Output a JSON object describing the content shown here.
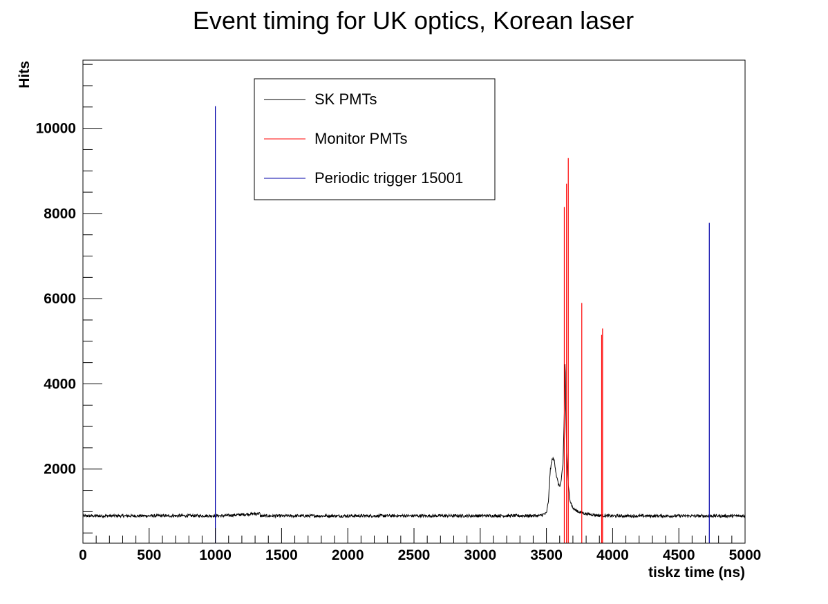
{
  "chart_data": {
    "type": "line",
    "title": "Event timing for UK optics, Korean laser",
    "xlabel": "tiskz time (ns)",
    "ylabel": "Hits",
    "xlim": [
      0,
      5000
    ],
    "ylim": [
      260,
      11600
    ],
    "x_ticks": [
      0,
      500,
      1000,
      1500,
      2000,
      2500,
      3000,
      3500,
      4000,
      4500,
      5000
    ],
    "y_ticks": [
      2000,
      4000,
      6000,
      8000,
      10000
    ],
    "legend_position": "top-center",
    "series": [
      {
        "name": "SK PMTs",
        "color": "#000000",
        "baseline": 900,
        "points": [
          [
            0,
            900
          ],
          [
            1000,
            905
          ],
          [
            1050,
            900
          ],
          [
            1335,
            960
          ],
          [
            1340,
            900
          ],
          [
            3450,
            905
          ],
          [
            3500,
            960
          ],
          [
            3515,
            1250
          ],
          [
            3530,
            2000
          ],
          [
            3545,
            2250
          ],
          [
            3560,
            2200
          ],
          [
            3575,
            1850
          ],
          [
            3590,
            1650
          ],
          [
            3600,
            1600
          ],
          [
            3610,
            1700
          ],
          [
            3625,
            2100
          ],
          [
            3637,
            3550
          ],
          [
            3641,
            4750
          ],
          [
            3645,
            3500
          ],
          [
            3652,
            2500
          ],
          [
            3665,
            1600
          ],
          [
            3680,
            1250
          ],
          [
            3700,
            1080
          ],
          [
            3740,
            1000
          ],
          [
            3800,
            950
          ],
          [
            3900,
            910
          ],
          [
            4000,
            900
          ],
          [
            5000,
            900
          ]
        ]
      },
      {
        "name": "Monitor PMTs",
        "color": "#ff0000",
        "spikes": [
          {
            "x": 3635,
            "height": 8150
          },
          {
            "x": 3652,
            "height": 8700
          },
          {
            "x": 3665,
            "height": 9300
          },
          {
            "x": 3767,
            "height": 5900
          },
          {
            "x": 3917,
            "height": 5150
          },
          {
            "x": 3924,
            "height": 5300
          }
        ]
      },
      {
        "name": "Periodic trigger 15001",
        "color": "#0000aa",
        "spikes": [
          {
            "x": 1000,
            "height": 10520
          },
          {
            "x": 4730,
            "height": 7780
          }
        ]
      }
    ]
  }
}
